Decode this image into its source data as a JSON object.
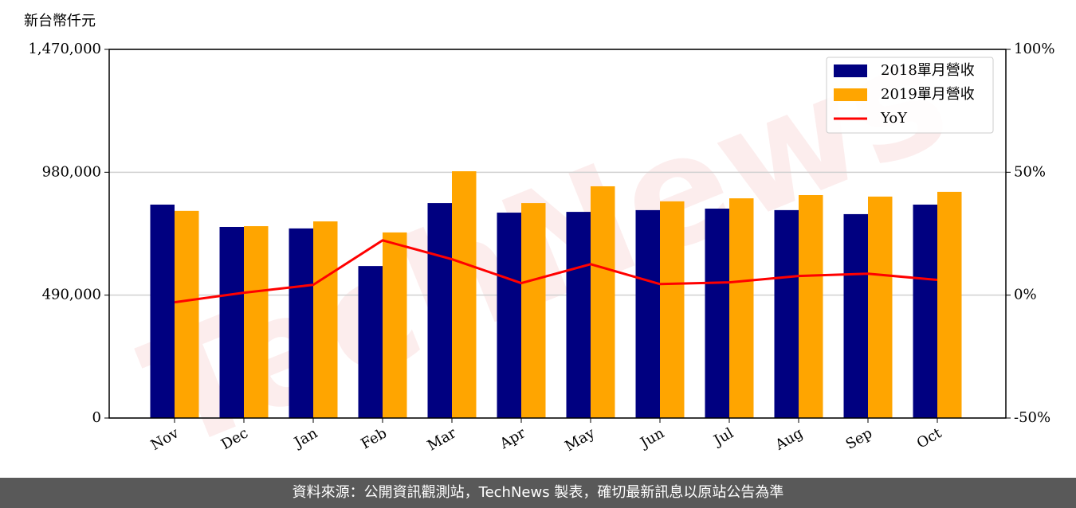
{
  "chart_data": {
    "type": "bar_line",
    "y_label": "新台幣仟元",
    "watermark": "TechNews",
    "categories": [
      "Nov",
      "Dec",
      "Jan",
      "Feb",
      "Mar",
      "Apr",
      "May",
      "Jun",
      "Jul",
      "Aug",
      "Sep",
      "Oct"
    ],
    "series": [
      {
        "name": "2018單月營收",
        "color": "#000080",
        "type": "bar",
        "values": [
          851000,
          762000,
          756000,
          606000,
          857000,
          819000,
          822000,
          829000,
          835000,
          829000,
          813000,
          851000
        ]
      },
      {
        "name": "2019單月營收",
        "color": "#ffa500",
        "type": "bar",
        "values": [
          826000,
          765000,
          784000,
          740000,
          984000,
          857000,
          924000,
          864000,
          876000,
          889000,
          883000,
          902000
        ]
      },
      {
        "name": "YoY",
        "color": "#ff0000",
        "type": "line",
        "axis": "y2",
        "values": [
          -2.9,
          1.0,
          4.2,
          22.3,
          14.6,
          4.9,
          12.6,
          4.5,
          5.2,
          7.8,
          8.7,
          6.2
        ]
      }
    ],
    "ylim": [
      0,
      1470000
    ],
    "yticks": [
      0,
      {
        "value": 490000,
        "label": "490,000"
      },
      {
        "value": 980000,
        "label": "980,000"
      },
      {
        "value": 1470000,
        "label": "1,470,000"
      }
    ],
    "y2lim": [
      -50,
      100
    ],
    "y2ticks": [
      {
        "value": -50,
        "label": "-50%"
      },
      {
        "value": 0,
        "label": "0%"
      },
      {
        "value": 50,
        "label": "50%"
      },
      {
        "value": 100,
        "label": "100%"
      }
    ],
    "grid": true,
    "legend": "upper right"
  },
  "footer": "資料來源：公開資訊觀測站，TechNews 製表，確切最新訊息以原站公告為準"
}
